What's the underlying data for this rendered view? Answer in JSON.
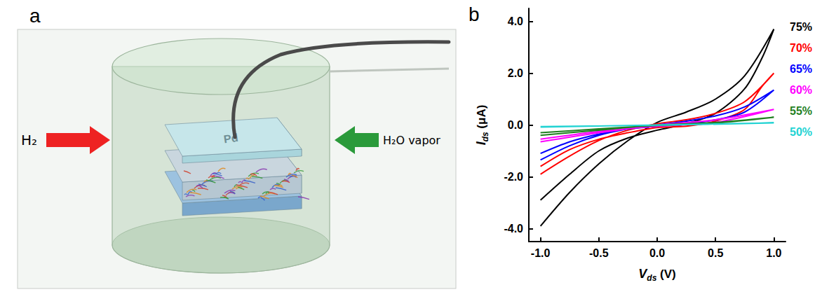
{
  "diagram": {
    "letter": "a",
    "plate_label": "Pd",
    "left_gas": "H₂",
    "right_gas": "H₂O vapor"
  },
  "chart_data": {
    "letter": "b",
    "type": "line",
    "x_label": {
      "symbol": "V",
      "subscript": "ds",
      "unit": "(V)"
    },
    "y_label": {
      "symbol": "I",
      "subscript": "ds",
      "unit": "(μA)"
    },
    "xlim": [
      -1.1,
      1.1
    ],
    "ylim": [
      -4.5,
      4.5
    ],
    "xticks": [
      {
        "value": -1,
        "label": "-1.0"
      },
      -0.5,
      {
        "value": 0,
        "label": "0.0"
      },
      0.5,
      {
        "value": 1,
        "label": "1.0"
      }
    ],
    "yticks": [
      {
        "value": -4,
        "label": "-4.0"
      },
      {
        "value": -2,
        "label": "-2.0"
      },
      {
        "value": 0,
        "label": "0.0"
      },
      {
        "value": 2,
        "label": "2.0"
      },
      {
        "value": 4,
        "label": "4.0"
      }
    ],
    "grid": false,
    "series": [
      {
        "name": "75%",
        "color": "#000000",
        "x": [
          -1,
          -0.75,
          -0.5,
          -0.25,
          0,
          0.25,
          0.5,
          0.75,
          1,
          0.9,
          0.75,
          0.5,
          0.25,
          0,
          -0.25,
          -0.5,
          -0.75,
          -1
        ],
        "values": [
          -3.9,
          -2.6,
          -1.5,
          -0.6,
          0.1,
          0.5,
          1.0,
          1.9,
          3.7,
          2.6,
          1.4,
          0.45,
          0.05,
          -0.2,
          -0.5,
          -1.0,
          -1.9,
          -2.9
        ]
      },
      {
        "name": "70%",
        "color": "#ff0000",
        "x": [
          -1,
          -0.75,
          -0.5,
          -0.25,
          0,
          0.25,
          0.5,
          0.75,
          1,
          0.9,
          0.75,
          0.5,
          0.25,
          0,
          -0.25,
          -0.5,
          -0.75,
          -1
        ],
        "values": [
          -1.9,
          -1.2,
          -0.6,
          -0.2,
          0.05,
          0.2,
          0.45,
          0.9,
          2.0,
          1.5,
          0.6,
          0.15,
          -0.05,
          -0.1,
          -0.3,
          -0.55,
          -0.95,
          -1.6
        ]
      },
      {
        "name": "65%",
        "color": "#0000ff",
        "x": [
          -1,
          -0.75,
          -0.5,
          -0.25,
          0,
          0.25,
          0.5,
          0.75,
          1,
          0.75,
          0.5,
          0.25,
          0,
          -0.25,
          -0.5,
          -0.75,
          -1
        ],
        "values": [
          -1.35,
          -0.8,
          -0.4,
          -0.15,
          0,
          0.15,
          0.35,
          0.7,
          1.35,
          0.5,
          0.2,
          0.05,
          -0.05,
          -0.15,
          -0.35,
          -0.65,
          -1.1
        ]
      },
      {
        "name": "60%",
        "color": "#ff00ff",
        "x": [
          -1,
          -0.5,
          0,
          0.5,
          1,
          0.5,
          0,
          -0.5,
          -1
        ],
        "values": [
          -0.65,
          -0.3,
          0,
          0.2,
          0.6,
          0.1,
          -0.05,
          -0.25,
          -0.55
        ]
      },
      {
        "name": "55%",
        "color": "#1f7f1f",
        "x": [
          -1,
          -0.5,
          0,
          0.5,
          1,
          0.5,
          0,
          -0.5,
          -1
        ],
        "values": [
          -0.4,
          -0.2,
          0,
          0.1,
          0.3,
          0.08,
          -0.02,
          -0.15,
          -0.3
        ]
      },
      {
        "name": "50%",
        "color": "#22d3d3",
        "x": [
          -1,
          0,
          1,
          0,
          -1
        ],
        "values": [
          -0.08,
          0,
          0.08,
          -0.01,
          -0.06
        ]
      }
    ]
  }
}
